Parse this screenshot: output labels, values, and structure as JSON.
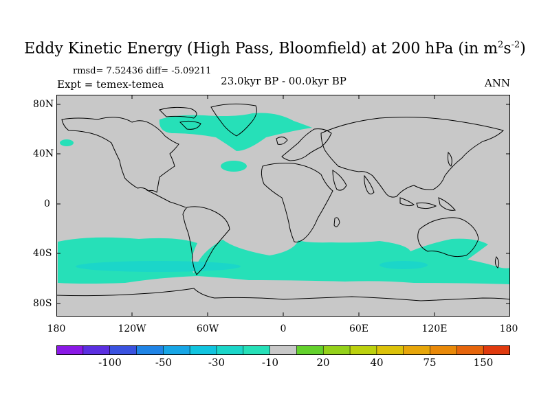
{
  "title": {
    "main": "Eddy Kinetic Energy (High Pass, Bloomfield) at 200 hPa (in m",
    "unit_m_exp": "2",
    "unit_s": "s",
    "unit_s_exp": "-2",
    "close": ")"
  },
  "stats": "rmsd= 7.52436 diff= -5.09211",
  "experiment": "Expt = temex-temea",
  "period": "23.0kyr BP - 00.0kyr BP",
  "season": "ANN",
  "lat_labels": [
    "80N",
    "40N",
    "0",
    "40S",
    "80S"
  ],
  "lon_labels": [
    "180",
    "120W",
    "60W",
    "0",
    "60E",
    "120E",
    "180"
  ],
  "colorbar": {
    "labels": [
      "-100",
      "-50",
      "-30",
      "-10",
      "20",
      "40",
      "75",
      "150"
    ],
    "colors": [
      "#8a19e6",
      "#5b2fe1",
      "#3a52e0",
      "#1f84e6",
      "#17a6e6",
      "#11c4df",
      "#1bd6c9",
      "#26e0b8",
      "#c8c8c8",
      "#63d12c",
      "#94d11a",
      "#bcd10e",
      "#dcc20a",
      "#e7a60a",
      "#e98909",
      "#e6650c",
      "#e03a0e"
    ]
  },
  "colors": {
    "land_ocean_neutral": "#c8c8c8",
    "anomaly_negative": "#26e0b8",
    "anomaly_negative_strong": "#1bd6c9"
  }
}
